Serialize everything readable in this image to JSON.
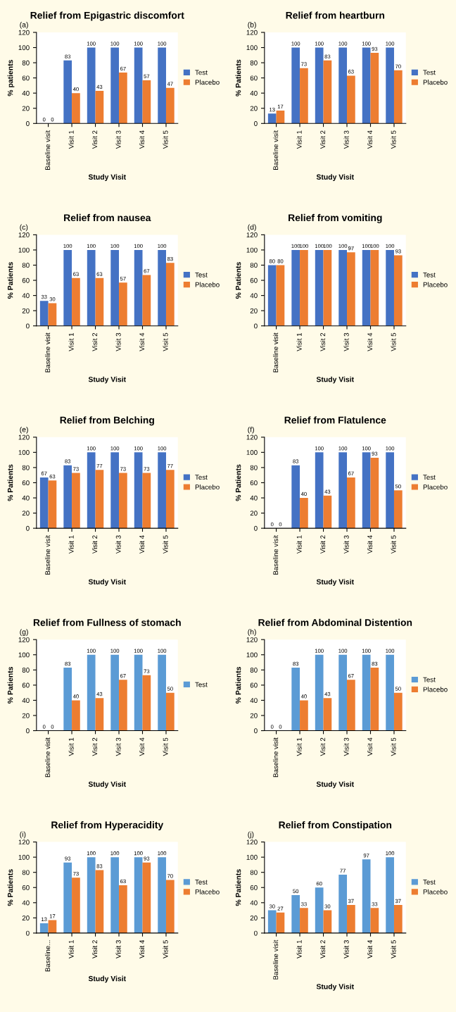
{
  "chart_data": [
    {
      "type": "bar",
      "title": "Relief from Epigastric discomfort",
      "annotations": [
        "(a)"
      ],
      "xlabel": "Study Visit",
      "ylabel": "% patients",
      "categories": [
        "Baseline visit",
        "Visit 1",
        "Visit 2",
        "Visit 3",
        "Visit 4",
        "Visit 5"
      ],
      "ylim": [
        0,
        120
      ],
      "yticks": [
        0,
        20,
        40,
        60,
        80,
        100,
        120
      ],
      "data_labels": true,
      "legend": "right",
      "series": [
        {
          "name": "Test",
          "color": "#4472c4",
          "values": [
            0,
            83,
            100,
            100,
            100,
            100
          ]
        },
        {
          "name": "Placebo",
          "color": "#ed7d31",
          "values": [
            0,
            40,
            43,
            67,
            57,
            47
          ]
        }
      ]
    },
    {
      "type": "bar",
      "title": "Relief from heartburn",
      "annotations": [
        "(b)"
      ],
      "xlabel": "Study Visit",
      "ylabel": "% Patients",
      "categories": [
        "Baseline visit",
        "Visit 1",
        "Visit 2",
        "Visit 3",
        "Visit 4",
        "Visit 5"
      ],
      "ylim": [
        0,
        120
      ],
      "yticks": [
        0,
        20,
        40,
        60,
        80,
        100,
        120
      ],
      "data_labels": true,
      "legend": "right",
      "series": [
        {
          "name": "Test",
          "color": "#4472c4",
          "values": [
            13,
            100,
            100,
            100,
            100,
            100
          ]
        },
        {
          "name": "Placebo",
          "color": "#ed7d31",
          "values": [
            17,
            73,
            83,
            63,
            93,
            70
          ]
        }
      ]
    },
    {
      "type": "bar",
      "title": "Relief from nausea",
      "annotations": [
        "(c)"
      ],
      "xlabel": "Study Visit",
      "ylabel": "% Patients",
      "categories": [
        "Baseline visit",
        "Visit 1",
        "Visit 2",
        "Visit 3",
        "Visit 4",
        "Visit 5"
      ],
      "ylim": [
        0,
        120
      ],
      "yticks": [
        0,
        20,
        40,
        60,
        80,
        100,
        120
      ],
      "data_labels": true,
      "legend": "right",
      "series": [
        {
          "name": "Test",
          "color": "#4472c4",
          "values": [
            33,
            100,
            100,
            100,
            100,
            100
          ]
        },
        {
          "name": "Placebo",
          "color": "#ed7d31",
          "values": [
            30,
            63,
            63,
            57,
            67,
            83
          ]
        }
      ]
    },
    {
      "type": "bar",
      "title": "Relief from vomiting",
      "annotations": [
        "(d)"
      ],
      "xlabel": "Study Visit",
      "ylabel": "% Patients",
      "categories": [
        "Baseline visit",
        "Visit 1",
        "Visit 2",
        "Visit 3",
        "Visit 4",
        "Visit 5"
      ],
      "ylim": [
        0,
        120
      ],
      "yticks": [
        0,
        20,
        40,
        60,
        80,
        100,
        120
      ],
      "data_labels": true,
      "legend": "right",
      "series": [
        {
          "name": "Test",
          "color": "#4472c4",
          "values": [
            80,
            100,
            100,
            100,
            100,
            100
          ]
        },
        {
          "name": "Placebo",
          "color": "#ed7d31",
          "values": [
            80,
            100,
            100,
            97,
            100,
            93
          ]
        }
      ]
    },
    {
      "type": "bar",
      "title": "Relief from Belching",
      "annotations": [
        "(e)"
      ],
      "xlabel": "Study Visit",
      "ylabel": "% Patients",
      "categories": [
        "Baseline visit",
        "Visit 1",
        "Visit 2",
        "Visit 3",
        "Visit 4",
        "Visit 5"
      ],
      "ylim": [
        0,
        120
      ],
      "yticks": [
        0,
        20,
        40,
        60,
        80,
        100,
        120
      ],
      "data_labels": true,
      "legend": "right",
      "series": [
        {
          "name": "Test",
          "color": "#4472c4",
          "values": [
            67,
            83,
            100,
            100,
            100,
            100
          ]
        },
        {
          "name": "Placebo",
          "color": "#ed7d31",
          "values": [
            63,
            73,
            77,
            73,
            73,
            77
          ]
        }
      ]
    },
    {
      "type": "bar",
      "title": "Relief from Flatulence",
      "annotations": [
        "(f)"
      ],
      "xlabel": "Study Visit",
      "ylabel": "% Patients",
      "categories": [
        "Baseline visit",
        "Visit 1",
        "Visit 2",
        "Visit 3",
        "Visit 4",
        "Visit 5"
      ],
      "ylim": [
        0,
        120
      ],
      "yticks": [
        0,
        20,
        40,
        60,
        80,
        100,
        120
      ],
      "data_labels": true,
      "legend": "right",
      "series": [
        {
          "name": "Test",
          "color": "#4472c4",
          "values": [
            0,
            83,
            100,
            100,
            100,
            100
          ]
        },
        {
          "name": "Placebo",
          "color": "#ed7d31",
          "values": [
            0,
            40,
            43,
            67,
            93,
            50
          ]
        }
      ]
    },
    {
      "type": "bar",
      "title": "Relief from Fullness of stomach",
      "annotations": [
        "(g)"
      ],
      "xlabel": "Study Visit",
      "ylabel": "% Patients",
      "categories": [
        "Baseline visit",
        "Visit 1",
        "Visit 2",
        "Visit 3",
        "Visit 4",
        "Visit 5"
      ],
      "ylim": [
        0,
        120
      ],
      "yticks": [
        0,
        20,
        40,
        60,
        80,
        100,
        120
      ],
      "data_labels": true,
      "legend": "right",
      "series": [
        {
          "name": "Test",
          "color": "#5b9bd5",
          "values": [
            0,
            83,
            100,
            100,
            100,
            100
          ]
        },
        {
          "color": "#ed7d31",
          "values": [
            0,
            40,
            43,
            67,
            73,
            50
          ]
        }
      ]
    },
    {
      "type": "bar",
      "title": "Relief from Abdominal Distention",
      "annotations": [
        "(h)"
      ],
      "xlabel": "Study Visit",
      "ylabel": "% Patients",
      "categories": [
        "Baseline visit",
        "Visit 1",
        "Visit 2",
        "Visit 3",
        "Visit 4",
        "Visit 5"
      ],
      "ylim": [
        0,
        120
      ],
      "yticks": [
        0,
        20,
        40,
        60,
        80,
        100,
        120
      ],
      "data_labels": true,
      "legend": "right",
      "series": [
        {
          "name": "Test",
          "color": "#5b9bd5",
          "values": [
            0,
            83,
            100,
            100,
            100,
            100
          ]
        },
        {
          "name": "Placebo",
          "color": "#ed7d31",
          "values": [
            0,
            40,
            43,
            67,
            83,
            50
          ]
        }
      ]
    },
    {
      "type": "bar",
      "title": "Relief from Hyperacidity",
      "annotations": [
        "(i)"
      ],
      "xlabel": "Study Visit",
      "ylabel": "% Patients",
      "categories": [
        "Baseline...",
        "Visit 1",
        "Visit 2",
        "Visit 3",
        "Visit 4",
        "Visit 5"
      ],
      "ylim": [
        0,
        120
      ],
      "yticks": [
        0,
        20,
        40,
        60,
        80,
        100,
        120
      ],
      "data_labels": true,
      "legend": "right",
      "series": [
        {
          "name": "Test",
          "color": "#5b9bd5",
          "values": [
            13,
            93,
            100,
            100,
            100,
            100
          ]
        },
        {
          "name": "Placebo",
          "color": "#ed7d31",
          "values": [
            17,
            73,
            83,
            63,
            93,
            70
          ]
        }
      ]
    },
    {
      "type": "bar",
      "title": "Relief from Constipation",
      "annotations": [
        "(j)"
      ],
      "xlabel": "Study Visit",
      "ylabel": "% Patients",
      "categories": [
        "Baseline visit",
        "Visit 1",
        "Visit 2",
        "Visit 3",
        "Visit 4",
        "Visit 5"
      ],
      "ylim": [
        0,
        120
      ],
      "yticks": [
        0,
        20,
        40,
        60,
        80,
        100,
        120
      ],
      "data_labels": true,
      "legend": "right",
      "series": [
        {
          "name": "Test",
          "color": "#5b9bd5",
          "values": [
            30,
            50,
            60,
            77,
            97,
            100
          ]
        },
        {
          "name": "Placebo",
          "color": "#ed7d31",
          "values": [
            27,
            33,
            30,
            37,
            33,
            37
          ]
        }
      ]
    }
  ]
}
